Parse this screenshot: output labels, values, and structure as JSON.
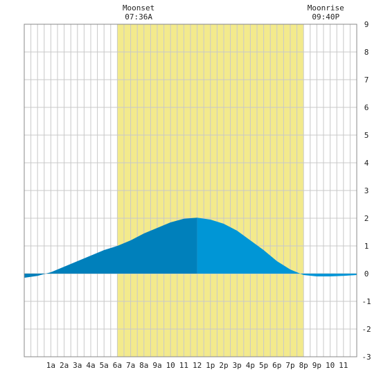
{
  "chart_data": {
    "type": "area",
    "x_tick_labels": [
      "1a",
      "2a",
      "3a",
      "4a",
      "5a",
      "6a",
      "7a",
      "8a",
      "9a",
      "10",
      "11",
      "12",
      "1p",
      "2p",
      "3p",
      "4p",
      "5p",
      "6p",
      "7p",
      "8p",
      "9p",
      "10",
      "11"
    ],
    "x_range_hours": [
      -1,
      24
    ],
    "y_tick_labels": [
      "9",
      "8",
      "7",
      "6",
      "5",
      "4",
      "3",
      "2",
      "1",
      "0",
      "-1",
      "-2",
      "-3"
    ],
    "ylim": [
      -3,
      9
    ],
    "daylight": {
      "start_hour": 6.0,
      "end_hour": 20.0,
      "color": "#f3ea8c"
    },
    "noon_split_hour": 12.0,
    "fill_colors": {
      "before_noon": "#0080bb",
      "after_noon": "#0096d6",
      "plot_bg": "#ffffff",
      "grid": "#c8c8c8"
    },
    "series": [
      {
        "x": [
          -1,
          0,
          1,
          2,
          3,
          4,
          5,
          6,
          7,
          8,
          9,
          10,
          11,
          12,
          13,
          14,
          15,
          16,
          17,
          18,
          19,
          20,
          21,
          22,
          23,
          24
        ],
        "y": [
          -0.15,
          -0.08,
          0.05,
          0.25,
          0.45,
          0.65,
          0.85,
          1.0,
          1.2,
          1.45,
          1.65,
          1.85,
          1.98,
          2.02,
          1.95,
          1.8,
          1.55,
          1.2,
          0.85,
          0.45,
          0.15,
          -0.05,
          -0.1,
          -0.1,
          -0.08,
          -0.05
        ]
      }
    ],
    "annotations": [
      {
        "title": "Moonset",
        "time": "07:36A",
        "hour": 7.6
      },
      {
        "title": "Moonrise",
        "time": "09:40P",
        "hour": 21.67
      }
    ]
  }
}
